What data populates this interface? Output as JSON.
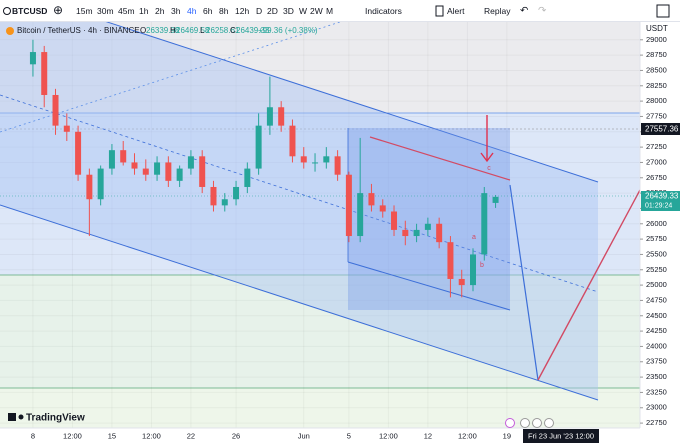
{
  "toolbar": {
    "symbol": "BTCUSD",
    "intervals": [
      "15m",
      "30m",
      "45m",
      "1h",
      "2h",
      "3h",
      "4h",
      "6h",
      "8h",
      "12h",
      "D",
      "2D",
      "3D",
      "W",
      "2W",
      "M"
    ],
    "active_interval": 6,
    "indicators": "Indicators",
    "alert": "Alert",
    "replay": "Replay"
  },
  "legend": {
    "title": "Bitcoin / TetherUS · 4h · BINANCE",
    "ohlc": [
      {
        "key": "O",
        "value": "26339.98"
      },
      {
        "key": "H",
        "value": "26469.58"
      },
      {
        "key": "L",
        "value": "26258.61"
      },
      {
        "key": "C",
        "value": "26439.33"
      }
    ],
    "change": "+99.36 (+0.38%)"
  },
  "price_axis": {
    "currency": "USDT",
    "marker_price": "27557.36",
    "last_price": "26439.33",
    "countdown": "01:29:24"
  },
  "crosshair_label": "Fri 23 Jun '23  12:00",
  "annotations": {
    "c": "c",
    "a": "a",
    "b": "b"
  },
  "brand": "TradingView",
  "chart_data": {
    "type": "candlestick",
    "up_color": "#26a69a",
    "down_color": "#ef5350",
    "x": [
      0,
      1,
      2,
      3,
      4,
      5,
      6,
      7,
      8,
      9,
      10,
      11,
      12,
      13,
      14,
      15,
      16,
      17,
      18,
      19,
      20,
      21,
      22,
      23,
      24,
      25,
      26,
      27,
      28,
      29,
      30,
      31,
      32,
      33,
      34,
      35,
      36,
      37,
      38,
      39,
      40,
      41
    ],
    "open": [
      28600,
      28800,
      28100,
      27600,
      27500,
      26800,
      26400,
      26900,
      27200,
      27000,
      26900,
      26800,
      27000,
      26700,
      26900,
      27100,
      26600,
      26300,
      26400,
      26600,
      26900,
      27600,
      27900,
      27600,
      27100,
      27000,
      27000,
      27100,
      26800,
      25800,
      26500,
      26300,
      26200,
      25900,
      25800,
      25900,
      26000,
      25700,
      25100,
      25000,
      25500,
      26339.98
    ],
    "high": [
      29000,
      28900,
      28200,
      27800,
      27600,
      26900,
      26950,
      27300,
      27350,
      27150,
      27050,
      27100,
      27100,
      26950,
      27200,
      27200,
      26700,
      26500,
      26700,
      27000,
      27800,
      28400,
      28000,
      27700,
      27250,
      27150,
      27250,
      27200,
      26850,
      27400,
      26650,
      26400,
      26300,
      26050,
      26000,
      26100,
      26100,
      25800,
      25250,
      25600,
      26600,
      26469.58
    ],
    "low": [
      28400,
      27900,
      27450,
      27350,
      26700,
      25800,
      26300,
      26800,
      26950,
      26800,
      26700,
      26700,
      26600,
      26600,
      26800,
      26500,
      26200,
      26200,
      26300,
      26500,
      26800,
      27450,
      27500,
      27000,
      26900,
      26850,
      26900,
      26700,
      25700,
      25700,
      26200,
      26100,
      25800,
      25650,
      25700,
      25800,
      25600,
      24800,
      24800,
      24900,
      25400,
      26258.61
    ],
    "close": [
      28800,
      28100,
      27600,
      27500,
      26800,
      26400,
      26900,
      27200,
      27000,
      26900,
      26800,
      27000,
      26700,
      26900,
      27100,
      26600,
      26300,
      26400,
      26600,
      26900,
      27600,
      27900,
      27600,
      27100,
      27000,
      27000,
      27100,
      26800,
      25800,
      26500,
      26300,
      26200,
      25900,
      25800,
      25900,
      26000,
      25700,
      25100,
      25000,
      25500,
      26500,
      26439.33
    ],
    "xlim": [
      -2.92,
      53.8
    ],
    "ylim": [
      22670,
      29290
    ],
    "yticks": [
      22750,
      23000,
      23250,
      23500,
      23750,
      24000,
      24250,
      24500,
      24750,
      25000,
      25250,
      25500,
      25750,
      26000,
      26250,
      26500,
      26750,
      27000,
      27250,
      27500,
      27750,
      28000,
      28250,
      28500,
      28750,
      29000
    ],
    "xticks": [
      {
        "value": 0,
        "label": "8"
      },
      {
        "value": 3.5,
        "label": "12:00"
      },
      {
        "value": 7,
        "label": "15"
      },
      {
        "value": 10.5,
        "label": "12:00"
      },
      {
        "value": 14,
        "label": "22"
      },
      {
        "value": 18,
        "label": "26"
      },
      {
        "value": 24,
        "label": "Jun"
      },
      {
        "value": 28,
        "label": "5"
      },
      {
        "value": 31.5,
        "label": "12:00"
      },
      {
        "value": 35,
        "label": "12"
      },
      {
        "value": 38.5,
        "label": "12:00"
      },
      {
        "value": 42,
        "label": "19"
      }
    ]
  }
}
